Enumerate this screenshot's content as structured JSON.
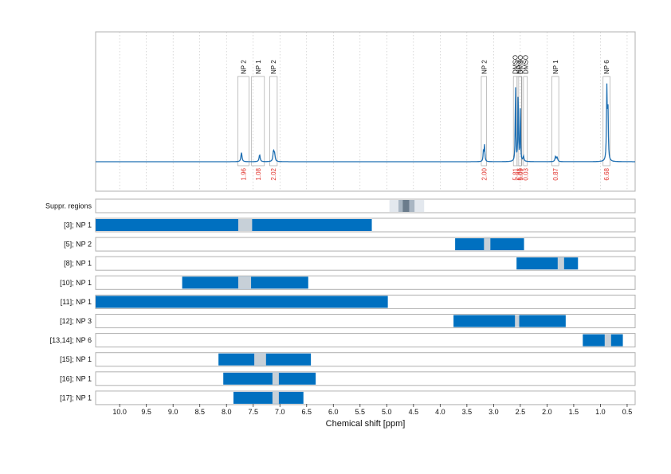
{
  "chart_data": {
    "type": "nmr-spectrum-with-range-bars",
    "xlabel": "Chemical shift [ppm]",
    "xlim": [
      10.45,
      0.35
    ],
    "x_reversed": true,
    "x_ticks": [
      10.0,
      9.5,
      9.0,
      8.5,
      8.0,
      7.5,
      7.0,
      6.5,
      6.0,
      5.5,
      5.0,
      4.5,
      4.0,
      3.5,
      3.0,
      2.5,
      2.0,
      1.5,
      1.0,
      0.5
    ],
    "x_tick_labels": [
      "10.0",
      "9.5",
      "9.0",
      "8.5",
      "8.0",
      "7.5",
      "7.0",
      "6.5",
      "6.0",
      "5.5",
      "5.0",
      "4.5",
      "4.0",
      "3.5",
      "3.0",
      "2.5",
      "2.0",
      "1.5",
      "1.0",
      "0.5"
    ],
    "grid": "vertical dotted",
    "spectrum": {
      "color": "#1f6fb2",
      "baseline": 0.0,
      "peaks": [
        {
          "ppm": 7.72,
          "height": 0.09,
          "width": 0.012
        },
        {
          "ppm": 7.38,
          "height": 0.07,
          "width": 0.012
        },
        {
          "ppm": 7.12,
          "height": 0.1,
          "width": 0.012
        },
        {
          "ppm": 7.1,
          "height": 0.07,
          "width": 0.012
        },
        {
          "ppm": 3.17,
          "height": 0.16,
          "width": 0.008
        },
        {
          "ppm": 3.19,
          "height": 0.1,
          "width": 0.008
        },
        {
          "ppm": 2.59,
          "height": 0.82,
          "width": 0.006
        },
        {
          "ppm": 2.54,
          "height": 0.78,
          "width": 0.006
        },
        {
          "ppm": 2.5,
          "height": 0.55,
          "width": 0.006
        },
        {
          "ppm": 2.44,
          "height": 0.05,
          "width": 0.01
        },
        {
          "ppm": 1.84,
          "height": 0.05,
          "width": 0.012
        },
        {
          "ppm": 1.81,
          "height": 0.04,
          "width": 0.012
        },
        {
          "ppm": 0.88,
          "height": 0.7,
          "width": 0.008
        },
        {
          "ppm": 0.86,
          "height": 0.55,
          "width": 0.008
        }
      ]
    },
    "peak_annotations": [
      {
        "ppm_from": 7.79,
        "ppm_to": 7.58,
        "label": "NP 2",
        "integral": "1.96"
      },
      {
        "ppm_from": 7.53,
        "ppm_to": 7.29,
        "label": "NP 1",
        "integral": "1.08"
      },
      {
        "ppm_from": 7.19,
        "ppm_to": 7.05,
        "label": "NP 2",
        "integral": "2.02"
      },
      {
        "ppm_from": 3.23,
        "ppm_to": 3.13,
        "label": "NP 2",
        "integral": "2.00"
      },
      {
        "ppm_from": 2.63,
        "ppm_to": 2.56,
        "label": "DMSO",
        "integral": "5.81"
      },
      {
        "ppm_from": 2.56,
        "ppm_to": 2.48,
        "label": "NP 3",
        "integral": "5.81"
      },
      {
        "ppm_from": 2.53,
        "ppm_to": 2.47,
        "label": "DMSO",
        "integral": "5.09"
      },
      {
        "ppm_from": 2.44,
        "ppm_to": 2.37,
        "label": "DMSO",
        "integral": "0.03"
      },
      {
        "ppm_from": 1.91,
        "ppm_to": 1.78,
        "label": "NP 1",
        "integral": "0.87"
      },
      {
        "ppm_from": 0.95,
        "ppm_to": 0.82,
        "label": "NP 6",
        "integral": "6.68"
      }
    ],
    "suppressed_region": {
      "label": "Suppr. regions",
      "outer": [
        4.95,
        4.3
      ],
      "middle": [
        4.78,
        4.48
      ],
      "inner": [
        4.7,
        4.58
      ]
    },
    "range_rows": [
      {
        "label": "[3]; NP 1",
        "from": 10.45,
        "to": 5.28,
        "marker": [
          7.78,
          7.52
        ]
      },
      {
        "label": "[5]; NP 2",
        "from": 3.72,
        "to": 2.43,
        "marker": [
          3.18,
          3.06
        ]
      },
      {
        "label": "[8]; NP 1",
        "from": 2.57,
        "to": 1.42,
        "marker": [
          1.8,
          1.68
        ]
      },
      {
        "label": "[10]; NP 1",
        "from": 8.83,
        "to": 6.47,
        "marker": [
          7.78,
          7.54
        ]
      },
      {
        "label": "[11]; NP 1",
        "from": 10.45,
        "to": 4.98,
        "marker": null
      },
      {
        "label": "[12]; NP 3",
        "from": 3.75,
        "to": 1.65,
        "marker": [
          2.6,
          2.52
        ]
      },
      {
        "label": "[13,14]; NP 6",
        "from": 1.33,
        "to": 0.58,
        "marker": [
          0.92,
          0.8
        ]
      },
      {
        "label": "[15]; NP 1",
        "from": 8.15,
        "to": 6.42,
        "marker": [
          7.48,
          7.26
        ]
      },
      {
        "label": "[16]; NP 1",
        "from": 8.06,
        "to": 6.33,
        "marker": [
          7.14,
          7.02
        ]
      },
      {
        "label": "[17]; NP 1",
        "from": 7.87,
        "to": 6.56,
        "marker": [
          7.14,
          7.02
        ]
      }
    ],
    "colors": {
      "bar": "#0070c0",
      "marker": "#c7d0d8",
      "suppr_outer": "#e3e8ee",
      "suppr_middle": "#a9b6c3",
      "suppr_inner": "#6b7c8c"
    }
  }
}
